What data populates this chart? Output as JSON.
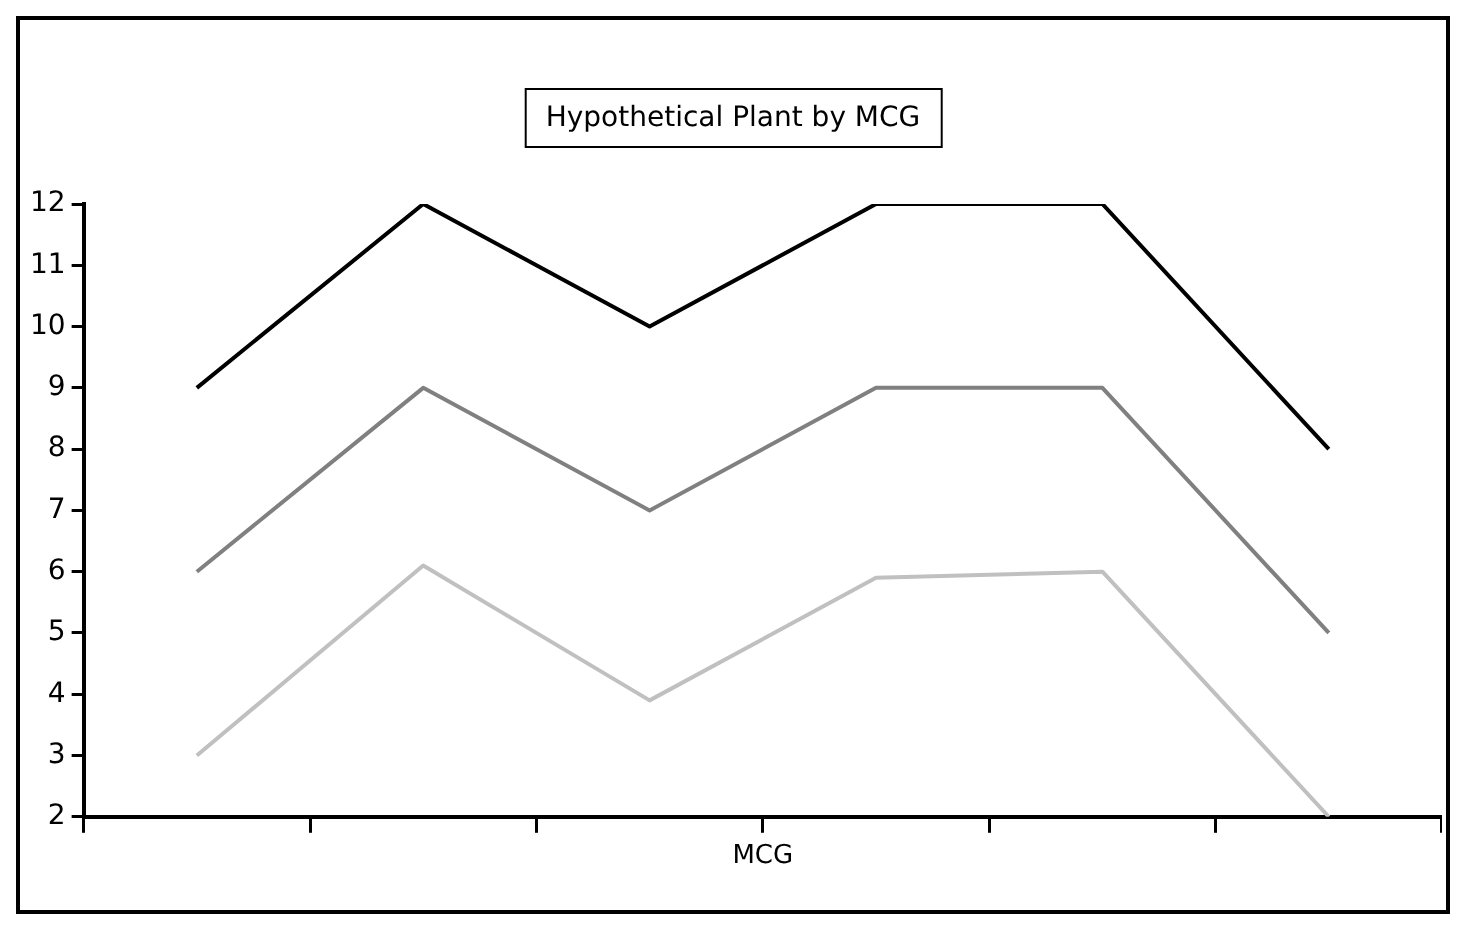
{
  "chart_data": {
    "type": "line",
    "title": "Hypothetical Plant by MCG",
    "xlabel": "MCG",
    "categories": [
      null,
      null,
      null,
      null,
      null,
      null
    ],
    "series": [
      {
        "color": "#000000",
        "values": [
          9,
          12,
          10,
          12,
          12,
          8
        ]
      },
      {
        "color": "#808080",
        "values": [
          6,
          9,
          7,
          9,
          9,
          5
        ]
      },
      {
        "color": "#c0c0c0",
        "values": [
          3,
          6.1,
          3.9,
          5.9,
          6,
          2
        ]
      }
    ],
    "ylim": [
      2,
      12
    ],
    "yticks": [
      2,
      3,
      4,
      5,
      6,
      7,
      8,
      9,
      10,
      11,
      12
    ],
    "tick_labels": "y",
    "grid": false,
    "legend": false,
    "marker": "none"
  }
}
